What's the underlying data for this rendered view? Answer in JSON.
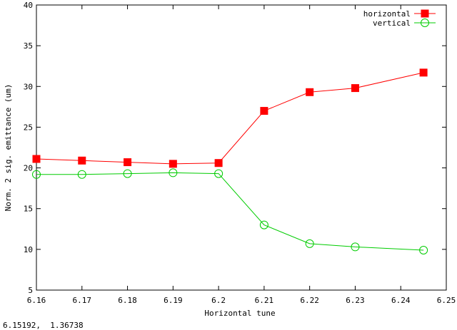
{
  "chart_data": {
    "type": "line",
    "xlabel": "Horizontal tune",
    "ylabel": "Norm. 2 sig. emittance (um)",
    "xlim": [
      6.16,
      6.25
    ],
    "ylim": [
      5,
      40
    ],
    "xticks": [
      "6.16",
      "6.17",
      "6.18",
      "6.19",
      "6.2",
      "6.21",
      "6.22",
      "6.23",
      "6.24",
      "6.25"
    ],
    "yticks": [
      "5",
      "10",
      "15",
      "20",
      "25",
      "30",
      "35",
      "40"
    ],
    "legend_position": "top-right",
    "grid": false,
    "series": [
      {
        "name": "horizontal",
        "color": "#ff0000",
        "marker": "filled-square",
        "x": [
          6.16,
          6.17,
          6.18,
          6.19,
          6.2,
          6.21,
          6.22,
          6.23,
          6.245
        ],
        "y": [
          21.1,
          20.9,
          20.7,
          20.5,
          20.6,
          27.0,
          29.3,
          29.8,
          31.7
        ]
      },
      {
        "name": "vertical",
        "color": "#00cc00",
        "marker": "open-circle",
        "x": [
          6.16,
          6.17,
          6.18,
          6.19,
          6.2,
          6.21,
          6.22,
          6.23,
          6.245
        ],
        "y": [
          19.2,
          19.2,
          19.3,
          19.4,
          19.3,
          13.0,
          10.7,
          10.3,
          9.9
        ]
      }
    ]
  },
  "status_bar": {
    "coordinates": "6.15192,  1.36738"
  }
}
